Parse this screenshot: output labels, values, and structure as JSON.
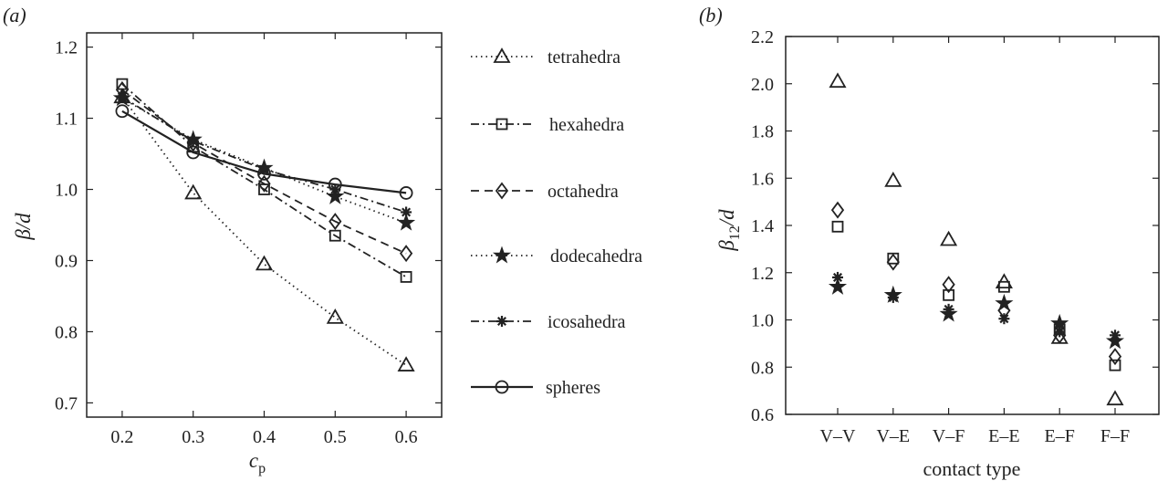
{
  "chart_data": [
    {
      "panel_label": "(a)",
      "type": "line",
      "xlabel": "c",
      "xlabel_sub": "p",
      "ylabel": "β/d",
      "xlim": [
        0.15,
        0.65
      ],
      "ylim": [
        0.68,
        1.22
      ],
      "xticks": [
        "0.2",
        "0.3",
        "0.4",
        "0.5",
        "0.6"
      ],
      "yticks": [
        "0.7",
        "0.8",
        "0.9",
        "1.0",
        "1.1",
        "1.2"
      ],
      "grid": false,
      "legend_position": "outside-right",
      "x": [
        0.2,
        0.3,
        0.4,
        0.5,
        0.6
      ],
      "series": [
        {
          "name": "tetrahedra",
          "marker": "triangle",
          "line": "dotted",
          "values": [
            1.13,
            0.995,
            0.895,
            0.82,
            0.753
          ]
        },
        {
          "name": "hexahedra",
          "marker": "square",
          "line": "dashdot",
          "values": [
            1.148,
            1.06,
            1.0,
            0.935,
            0.877
          ]
        },
        {
          "name": "octahedra",
          "marker": "diamond",
          "line": "dashed",
          "values": [
            1.14,
            1.065,
            1.008,
            0.955,
            0.91
          ]
        },
        {
          "name": "dodecahedra",
          "marker": "star",
          "line": "dotted",
          "values": [
            1.128,
            1.07,
            1.03,
            0.99,
            0.953
          ]
        },
        {
          "name": "icosahedra",
          "marker": "asterisk",
          "line": "dashdot",
          "values": [
            1.13,
            1.068,
            1.028,
            1.0,
            0.968
          ]
        },
        {
          "name": "spheres",
          "marker": "circle",
          "line": "solid",
          "values": [
            1.11,
            1.052,
            1.022,
            1.007,
            0.995
          ]
        }
      ]
    },
    {
      "panel_label": "(b)",
      "type": "scatter",
      "xlabel": "contact type",
      "ylabel": "β",
      "ylabel_sub": "12",
      "ylabel_suffix": "/d",
      "ylim": [
        0.6,
        2.2
      ],
      "yticks": [
        "0.6",
        "0.8",
        "1.0",
        "1.2",
        "1.4",
        "1.6",
        "1.8",
        "2.0",
        "2.2"
      ],
      "categories": [
        "V–V",
        "V–E",
        "V–F",
        "E–E",
        "E–F",
        "F–F"
      ],
      "grid": false,
      "series": [
        {
          "marker": "triangle",
          "values": [
            2.01,
            1.59,
            1.34,
            1.16,
            0.925,
            0.665
          ]
        },
        {
          "marker": "square",
          "values": [
            1.395,
            1.26,
            1.105,
            1.14,
            0.96,
            0.808
          ]
        },
        {
          "marker": "diamond",
          "values": [
            1.465,
            1.245,
            1.15,
            1.04,
            0.935,
            0.845
          ]
        },
        {
          "marker": "star",
          "values": [
            1.14,
            1.105,
            1.025,
            1.07,
            0.985,
            0.91
          ]
        },
        {
          "marker": "asterisk",
          "values": [
            1.18,
            1.095,
            1.045,
            1.005,
            0.95,
            0.935
          ]
        }
      ]
    }
  ]
}
